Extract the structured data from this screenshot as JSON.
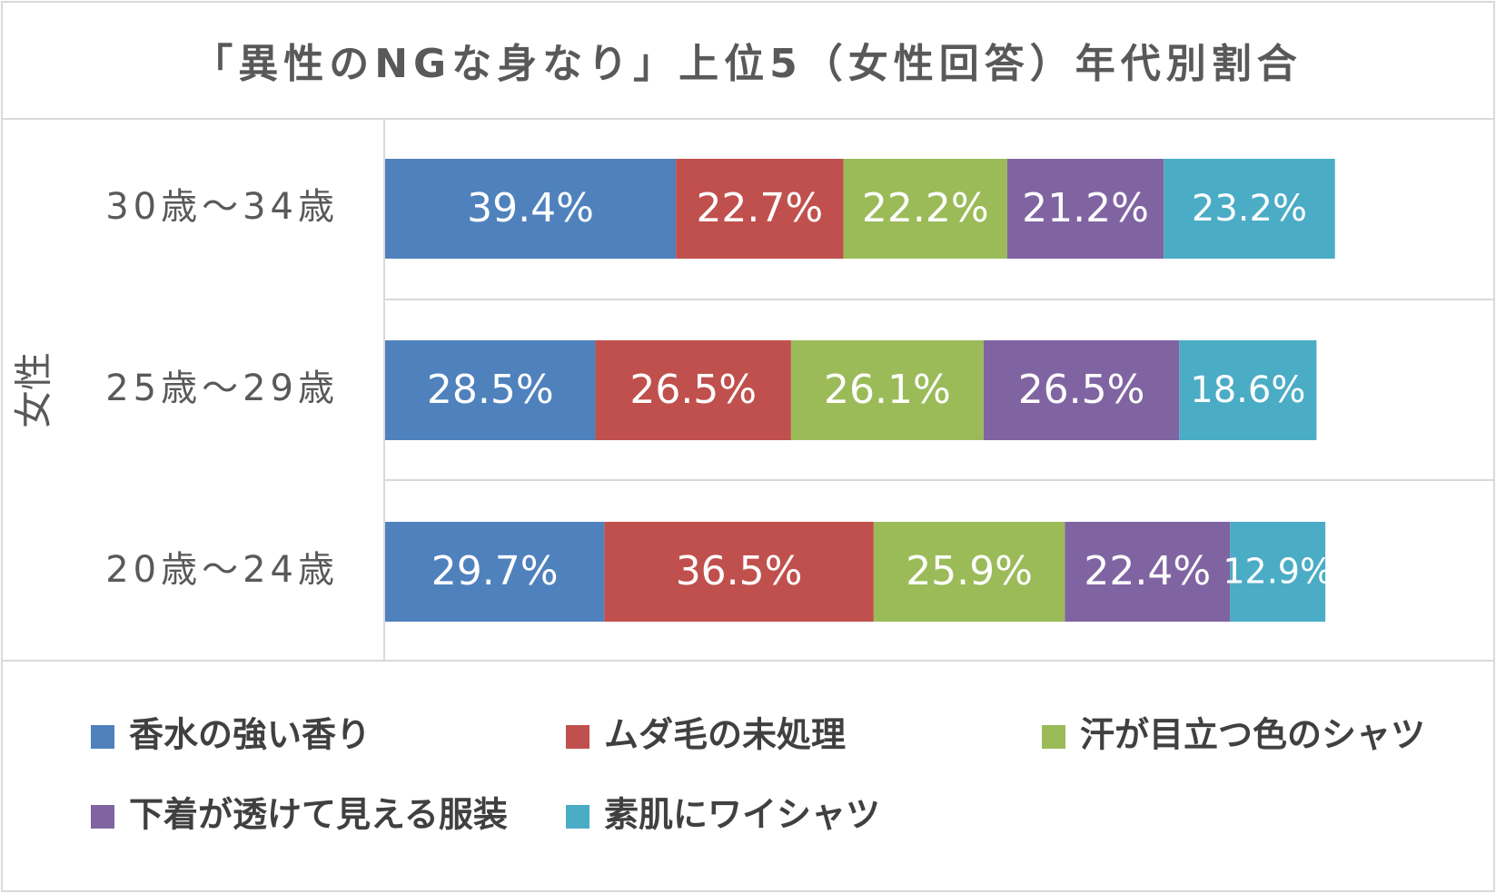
{
  "chart_data": {
    "type": "bar",
    "orientation": "horizontal",
    "stacked": true,
    "title": "「異性のNGな身なり」上位5（女性回答）年代別割合",
    "group_label": "女性",
    "categories": [
      "30歳～34歳",
      "25歳～29歳",
      "20歳～24歳"
    ],
    "series": [
      {
        "name": "香水の強い香り",
        "color": "#4F81BD",
        "values": [
          39.4,
          28.5,
          29.7
        ],
        "labels": [
          "39.4%",
          "28.5%",
          "29.7%"
        ]
      },
      {
        "name": "ムダ毛の未処理",
        "color": "#C0504D",
        "values": [
          22.7,
          26.5,
          36.5
        ],
        "labels": [
          "22.7%",
          "26.5%",
          "36.5%"
        ]
      },
      {
        "name": "汗が目立つ色のシャツ",
        "color": "#9BBB59",
        "values": [
          22.2,
          26.1,
          25.9
        ],
        "labels": [
          "22.2%",
          "26.1%",
          "25.9%"
        ]
      },
      {
        "name": "下着が透けて見える服装",
        "color": "#8064A2",
        "values": [
          21.2,
          26.5,
          22.4
        ],
        "labels": [
          "21.2%",
          "26.5%",
          "22.4%"
        ]
      },
      {
        "name": "素肌にワイシャツ",
        "color": "#4BACC6",
        "values": [
          23.2,
          18.6,
          12.9
        ],
        "labels": [
          "23.2%",
          "18.6%",
          "12.9%"
        ]
      }
    ],
    "legend_position": "bottom",
    "grid": false,
    "colors": {
      "border": "#D9D9D9",
      "text": "#595959",
      "legend_text": "#404040",
      "data_label": "#FFFFFF"
    }
  }
}
